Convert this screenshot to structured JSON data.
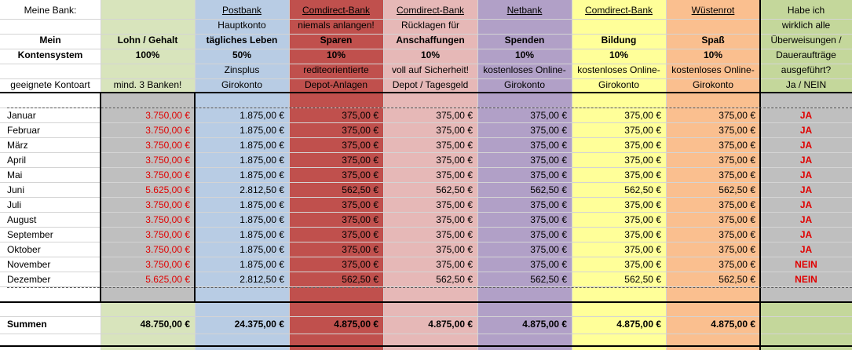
{
  "labels": {
    "bank": "Meine Bank:",
    "system_1": "Mein",
    "system_2": "Kontensystem",
    "kontoart": "geeignete Kontoart"
  },
  "columns": [
    {
      "bank": "",
      "sub": "",
      "title": "Lohn / Gehalt",
      "percent": "100%",
      "note": "",
      "kontoart": "mind. 3 Banken!"
    },
    {
      "bank": "Postbank",
      "sub": "Hauptkonto",
      "title": "tägliches Leben",
      "percent": "50%",
      "note": "Zinsplus",
      "kontoart": "Girokonto"
    },
    {
      "bank": "Comdirect-Bank",
      "sub": "niemals anlangen!",
      "title": "Sparen",
      "percent": "10%",
      "note": "rediteorientierte",
      "kontoart": "Depot-Anlagen"
    },
    {
      "bank": "Comdirect-Bank",
      "sub": "Rücklagen für",
      "title": "Anschaffungen",
      "percent": "10%",
      "note": "voll auf Sicherheit!",
      "kontoart": "Depot / Tagesgeld"
    },
    {
      "bank": "Netbank",
      "sub": "",
      "title": "Spenden",
      "percent": "10%",
      "note": "kostenloses Online-",
      "kontoart": "Girokonto"
    },
    {
      "bank": "Comdirect-Bank",
      "sub": "",
      "title": "Bildung",
      "percent": "10%",
      "note": "kostenloses Online-",
      "kontoart": "Girokonto"
    },
    {
      "bank": "Wüstenrot",
      "sub": "",
      "title": "Spaß",
      "percent": "10%",
      "note": "kostenloses Online-",
      "kontoart": "Girokonto"
    }
  ],
  "check_header": [
    "Habe ich",
    "wirklich alle",
    "Überweisungen /",
    "Daueraufträge",
    "ausgeführt?",
    "Ja / NEIN"
  ],
  "months": [
    {
      "name": "Januar",
      "values": [
        "3.750,00 €",
        "1.875,00 €",
        "375,00 €",
        "375,00 €",
        "375,00 €",
        "375,00 €",
        "375,00 €"
      ],
      "check": "JA"
    },
    {
      "name": "Februar",
      "values": [
        "3.750,00 €",
        "1.875,00 €",
        "375,00 €",
        "375,00 €",
        "375,00 €",
        "375,00 €",
        "375,00 €"
      ],
      "check": "JA"
    },
    {
      "name": "März",
      "values": [
        "3.750,00 €",
        "1.875,00 €",
        "375,00 €",
        "375,00 €",
        "375,00 €",
        "375,00 €",
        "375,00 €"
      ],
      "check": "JA"
    },
    {
      "name": "April",
      "values": [
        "3.750,00 €",
        "1.875,00 €",
        "375,00 €",
        "375,00 €",
        "375,00 €",
        "375,00 €",
        "375,00 €"
      ],
      "check": "JA"
    },
    {
      "name": "Mai",
      "values": [
        "3.750,00 €",
        "1.875,00 €",
        "375,00 €",
        "375,00 €",
        "375,00 €",
        "375,00 €",
        "375,00 €"
      ],
      "check": "JA"
    },
    {
      "name": "Juni",
      "values": [
        "5.625,00 €",
        "2.812,50 €",
        "562,50 €",
        "562,50 €",
        "562,50 €",
        "562,50 €",
        "562,50 €"
      ],
      "check": "JA"
    },
    {
      "name": "Juli",
      "values": [
        "3.750,00 €",
        "1.875,00 €",
        "375,00 €",
        "375,00 €",
        "375,00 €",
        "375,00 €",
        "375,00 €"
      ],
      "check": "JA"
    },
    {
      "name": "August",
      "values": [
        "3.750,00 €",
        "1.875,00 €",
        "375,00 €",
        "375,00 €",
        "375,00 €",
        "375,00 €",
        "375,00 €"
      ],
      "check": "JA"
    },
    {
      "name": "September",
      "values": [
        "3.750,00 €",
        "1.875,00 €",
        "375,00 €",
        "375,00 €",
        "375,00 €",
        "375,00 €",
        "375,00 €"
      ],
      "check": "JA"
    },
    {
      "name": "Oktober",
      "values": [
        "3.750,00 €",
        "1.875,00 €",
        "375,00 €",
        "375,00 €",
        "375,00 €",
        "375,00 €",
        "375,00 €"
      ],
      "check": "JA"
    },
    {
      "name": "November",
      "values": [
        "3.750,00 €",
        "1.875,00 €",
        "375,00 €",
        "375,00 €",
        "375,00 €",
        "375,00 €",
        "375,00 €"
      ],
      "check": "NEIN"
    },
    {
      "name": "Dezember",
      "values": [
        "5.625,00 €",
        "2.812,50 €",
        "562,50 €",
        "562,50 €",
        "562,50 €",
        "562,50 €",
        "562,50 €"
      ],
      "check": "NEIN"
    }
  ],
  "sums": {
    "label": "Summen",
    "values": [
      "48.750,00 €",
      "24.375,00 €",
      "4.875,00 €",
      "4.875,00 €",
      "4.875,00 €",
      "4.875,00 €",
      "4.875,00 €"
    ]
  },
  "colors": {
    "lohn": "#d8e4bc",
    "postbank": "#b8cce4",
    "sparen": "#c0504d",
    "anschaffungen": "#e6b8b7",
    "spenden": "#b1a0c7",
    "bildung": "#ffff99",
    "spass": "#fabf8f",
    "check": "#c4d79b",
    "negative_red": "#e00000"
  }
}
